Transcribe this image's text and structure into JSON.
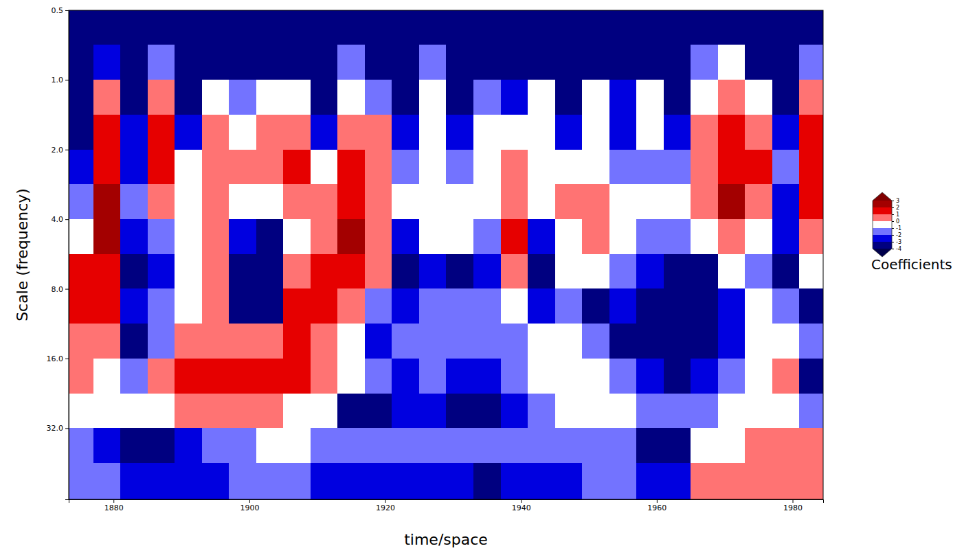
{
  "chart_data": {
    "type": "heatmap",
    "x_label": "time/space",
    "y_label": "Scale (frequency)",
    "log": "y",
    "xlim": [
      1873.4,
      1984.5
    ],
    "ylim": [
      0.5,
      65
    ],
    "xticks": [
      1880,
      1900,
      1920,
      1940,
      1960,
      1980
    ],
    "yticks": [
      0.5,
      {
        "value": 1,
        "label": "1.0"
      },
      {
        "value": 2,
        "label": "2.0"
      },
      {
        "value": 4,
        "label": "4.0"
      },
      {
        "value": 8,
        "label": "8.0"
      },
      {
        "value": 16,
        "label": "16.0"
      },
      {
        "value": 32,
        "label": "32.0"
      }
    ],
    "x": [
      1875,
      1879,
      1883,
      1887,
      1891,
      1895,
      1899,
      1903,
      1907,
      1911,
      1915,
      1919,
      1923,
      1927,
      1931,
      1935,
      1939,
      1943,
      1947,
      1951,
      1955,
      1959,
      1963,
      1967,
      1971,
      1975,
      1979,
      1983
    ],
    "y": [
      0.59,
      0.84,
      1.19,
      1.68,
      2.38,
      3.36,
      4.76,
      6.73,
      9.5,
      13.5,
      19,
      27,
      38,
      54
    ],
    "z": [
      [
        -3.5,
        -3.5,
        -3.5,
        -3.5,
        -2.5,
        -1.5,
        -0.5,
        1.5,
        1.5,
        0.5,
        0.5,
        -0.5,
        -1.5,
        -1.5
      ],
      [
        -3.5,
        -2.5,
        0.5,
        1.5,
        1.5,
        2.5,
        2.5,
        1.5,
        1.5,
        0.5,
        -0.5,
        -0.5,
        -2.5,
        -1.5
      ],
      [
        -3.5,
        -3.5,
        -3.5,
        -2.5,
        -2.5,
        -1.5,
        -2.5,
        -3.5,
        -2.5,
        -3.5,
        -1.5,
        -0.5,
        -3.5,
        -2.5
      ],
      [
        -3.5,
        -1.5,
        0.5,
        1.5,
        1.5,
        0.5,
        -1.5,
        -2.5,
        -1.5,
        -1.5,
        0.5,
        -0.5,
        -3.5,
        -2.5
      ],
      [
        -3.5,
        -3.5,
        -3.5,
        -2.5,
        -0.5,
        -0.5,
        -0.5,
        -0.5,
        -0.5,
        0.5,
        1.5,
        0.5,
        -2.5,
        -2.5
      ],
      [
        -3.5,
        -3.5,
        -0.5,
        0.5,
        0.5,
        0.5,
        0.5,
        0.5,
        0.5,
        0.5,
        1.5,
        0.5,
        -1.5,
        -2.5
      ],
      [
        -3.5,
        -3.5,
        -1.5,
        -0.5,
        0.5,
        -0.5,
        -2.5,
        -3.5,
        -3.5,
        0.5,
        1.5,
        0.5,
        -1.5,
        -1.5
      ],
      [
        -3.5,
        -3.5,
        -0.5,
        0.5,
        0.5,
        -0.5,
        -3.5,
        -3.5,
        -3.5,
        0.5,
        1.5,
        0.5,
        -0.5,
        -1.5
      ],
      [
        -3.5,
        -3.5,
        -0.5,
        0.5,
        1.5,
        0.5,
        -0.5,
        0.5,
        1.5,
        1.5,
        1.5,
        -0.5,
        -0.5,
        -1.5
      ],
      [
        -3.5,
        -3.5,
        -3.5,
        -2.5,
        -0.5,
        0.5,
        0.5,
        1.5,
        1.5,
        0.5,
        0.5,
        -0.5,
        -1.5,
        -2.5
      ],
      [
        -3.5,
        -1.5,
        -0.5,
        0.5,
        1.5,
        1.5,
        2.5,
        1.5,
        0.5,
        -0.5,
        -0.5,
        -3.5,
        -1.5,
        -2.5
      ],
      [
        -3.5,
        -3.5,
        -1.5,
        0.5,
        0.5,
        0.5,
        0.5,
        0.5,
        -1.5,
        -2.5,
        -1.5,
        -3.5,
        -1.5,
        -2.5
      ],
      [
        -3.5,
        -3.5,
        -3.5,
        -2.5,
        -1.5,
        -0.5,
        -2.5,
        -3.5,
        -2.5,
        -1.5,
        -2.5,
        -2.5,
        -1.5,
        -2.5
      ],
      [
        -3.5,
        -1.5,
        -0.5,
        -0.5,
        -0.5,
        -0.5,
        -0.5,
        -2.5,
        -1.5,
        -1.5,
        -1.5,
        -2.5,
        -1.5,
        -2.5
      ],
      [
        -3.5,
        -3.5,
        -3.5,
        -2.5,
        -1.5,
        -0.5,
        -0.5,
        -3.5,
        -1.5,
        -1.5,
        -2.5,
        -3.5,
        -1.5,
        -2.5
      ],
      [
        -3.5,
        -3.5,
        -1.5,
        -0.5,
        -0.5,
        -0.5,
        -1.5,
        -2.5,
        -1.5,
        -1.5,
        -2.5,
        -3.5,
        -1.5,
        -3.5
      ],
      [
        -3.5,
        -3.5,
        -2.5,
        -0.5,
        0.5,
        0.5,
        1.5,
        0.5,
        -0.5,
        -1.5,
        -1.5,
        -2.5,
        -1.5,
        -2.5
      ],
      [
        -3.5,
        -3.5,
        -0.5,
        -0.5,
        -0.5,
        -0.5,
        -2.5,
        -3.5,
        -2.5,
        -0.5,
        -0.5,
        -1.5,
        -1.5,
        -2.5
      ],
      [
        -3.5,
        -3.5,
        -3.5,
        -2.5,
        -0.5,
        0.5,
        -0.5,
        -0.5,
        -1.5,
        -0.5,
        -0.5,
        -0.5,
        -1.5,
        -2.5
      ],
      [
        -3.5,
        -3.5,
        -0.5,
        -0.5,
        -0.5,
        0.5,
        0.5,
        -0.5,
        -3.5,
        -1.5,
        -0.5,
        -0.5,
        -1.5,
        -1.5
      ],
      [
        -3.5,
        -3.5,
        -2.5,
        -2.5,
        -1.5,
        -0.5,
        -0.5,
        -1.5,
        -2.5,
        -3.5,
        -1.5,
        -0.5,
        -1.5,
        -1.5
      ],
      [
        -3.5,
        -3.5,
        -0.5,
        -0.5,
        -1.5,
        -0.5,
        -1.5,
        -2.5,
        -3.5,
        -3.5,
        -2.5,
        -1.5,
        -3.5,
        -2.5
      ],
      [
        -3.5,
        -3.5,
        -3.5,
        -2.5,
        -1.5,
        -0.5,
        -1.5,
        -3.5,
        -3.5,
        -3.5,
        -3.5,
        -1.5,
        -3.5,
        -2.5
      ],
      [
        -3.5,
        -1.5,
        -0.5,
        0.5,
        0.5,
        0.5,
        -0.5,
        -3.5,
        -3.5,
        -3.5,
        -2.5,
        -1.5,
        -0.5,
        0.5
      ],
      [
        -3.5,
        -0.5,
        0.5,
        1.5,
        1.5,
        2.5,
        0.5,
        -0.5,
        -2.5,
        -2.5,
        -1.5,
        -0.5,
        -0.5,
        0.5
      ],
      [
        -3.5,
        -3.5,
        -0.5,
        0.5,
        1.5,
        0.5,
        -0.5,
        -1.5,
        -0.5,
        -0.5,
        -0.5,
        -0.5,
        0.5,
        0.5
      ],
      [
        -3.5,
        -3.5,
        -3.5,
        -2.5,
        -1.5,
        -2.5,
        -2.5,
        -3.5,
        -1.5,
        -0.5,
        0.5,
        -0.5,
        0.5,
        0.5
      ],
      [
        -3.5,
        -1.5,
        0.5,
        1.5,
        1.5,
        1.5,
        0.5,
        -0.5,
        -3.5,
        -1.5,
        -3.5,
        -1.5,
        0.5,
        0.5
      ]
    ],
    "colorbar": {
      "label": "Coefficients",
      "levels": [
        -4,
        -3,
        -2,
        -1,
        0,
        1,
        2,
        3
      ],
      "colors": [
        "#00004c",
        "#000080",
        "#0000e0",
        "#7373ff",
        "#ffffff",
        "#ff7373",
        "#e60000",
        "#a30000",
        "#800000"
      ],
      "ticks": [
        3,
        2,
        1,
        0,
        -1,
        -2,
        -3,
        -4
      ]
    }
  }
}
